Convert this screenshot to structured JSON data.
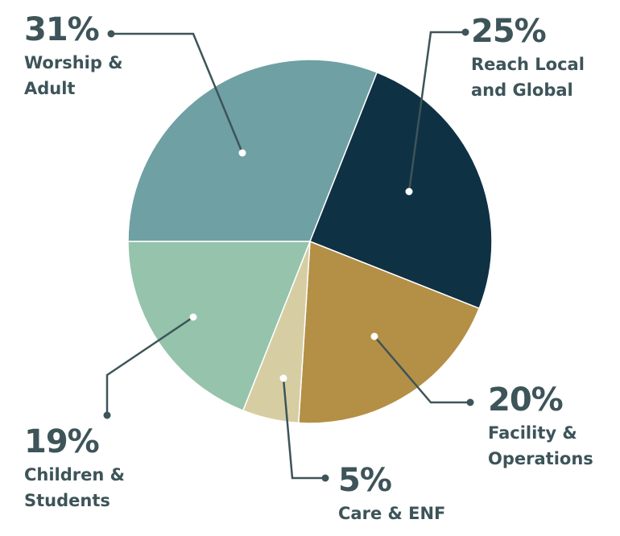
{
  "chart_data": {
    "type": "pie",
    "categories": [
      "Worship & Adult",
      "Reach Local and Global",
      "Facility & Operations",
      "Care & ENF",
      "Children & Students"
    ],
    "values": [
      31,
      25,
      20,
      5,
      19
    ],
    "value_labels": [
      "31%",
      "25%",
      "20%",
      "5%",
      "19%"
    ],
    "colors": [
      "#6fa0a3",
      "#0f3144",
      "#b48f46",
      "#d6cea2",
      "#95c3ab"
    ]
  }
}
